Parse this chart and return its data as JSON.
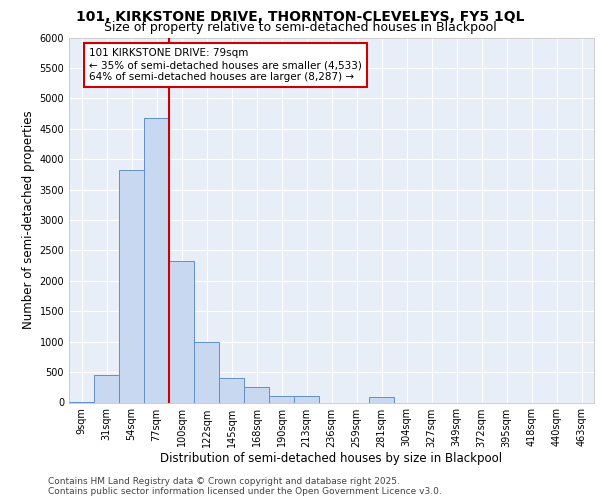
{
  "title": "101, KIRKSTONE DRIVE, THORNTON-CLEVELEYS, FY5 1QL",
  "subtitle": "Size of property relative to semi-detached houses in Blackpool",
  "xlabel": "Distribution of semi-detached houses by size in Blackpool",
  "ylabel": "Number of semi-detached properties",
  "annotation_title": "101 KIRKSTONE DRIVE: 79sqm",
  "annotation_line1": "← 35% of semi-detached houses are smaller (4,533)",
  "annotation_line2": "64% of semi-detached houses are larger (8,287) →",
  "footer_line1": "Contains HM Land Registry data © Crown copyright and database right 2025.",
  "footer_line2": "Contains public sector information licensed under the Open Government Licence v3.0.",
  "bar_labels": [
    "9sqm",
    "31sqm",
    "54sqm",
    "77sqm",
    "100sqm",
    "122sqm",
    "145sqm",
    "168sqm",
    "190sqm",
    "213sqm",
    "236sqm",
    "259sqm",
    "281sqm",
    "304sqm",
    "327sqm",
    "349sqm",
    "372sqm",
    "395sqm",
    "418sqm",
    "440sqm",
    "463sqm"
  ],
  "bar_values": [
    10,
    450,
    3820,
    4680,
    2320,
    1000,
    400,
    250,
    100,
    100,
    0,
    0,
    90,
    0,
    0,
    0,
    0,
    0,
    0,
    0,
    0
  ],
  "bar_color": "#c8d8f0",
  "bar_edge_color": "#6090c8",
  "vline_color": "#cc0000",
  "vline_bin": 3,
  "ylim": [
    0,
    6000
  ],
  "yticks": [
    0,
    500,
    1000,
    1500,
    2000,
    2500,
    3000,
    3500,
    4000,
    4500,
    5000,
    5500,
    6000
  ],
  "bg_color": "#e8eef8",
  "grid_color": "#ffffff",
  "annotation_box_edge": "#cc0000",
  "title_fontsize": 10,
  "subtitle_fontsize": 9,
  "axis_label_fontsize": 8.5,
  "tick_fontsize": 7,
  "annotation_fontsize": 7.5,
  "footer_fontsize": 6.5
}
